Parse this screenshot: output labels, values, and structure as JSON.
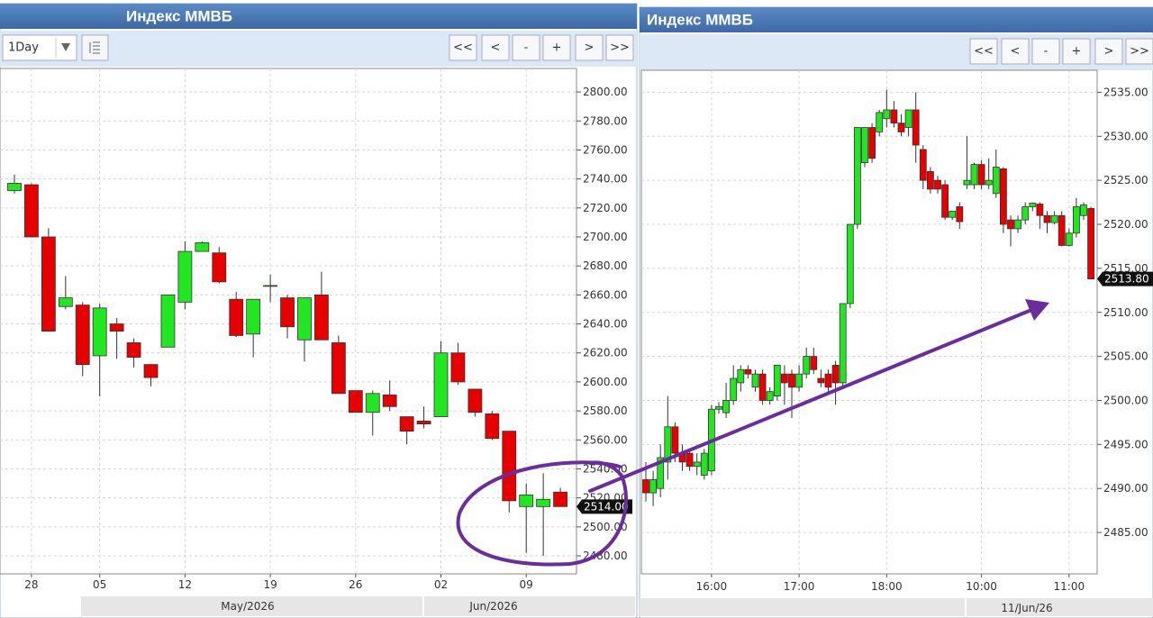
{
  "chart_data": [
    {
      "type": "candlestick",
      "title": "Индекс ММВБ",
      "interval": "1Day",
      "buttons": [
        "<<",
        "<",
        "-",
        "+",
        ">",
        ">>"
      ],
      "categories": [
        null,
        "28",
        null,
        null,
        null,
        "05",
        null,
        null,
        null,
        null,
        "12",
        null,
        null,
        null,
        null,
        "19",
        null,
        null,
        null,
        null,
        "26",
        null,
        null,
        null,
        null,
        "02",
        null,
        null,
        null,
        null,
        "09",
        null,
        null
      ],
      "x_group_labels": [
        "May/2026",
        "Jun/2026"
      ],
      "open": [
        2732,
        2736,
        2700,
        2652,
        2653,
        2618,
        2640,
        2627,
        2612,
        2624,
        2655,
        2690,
        2689,
        2657,
        2633,
        2666,
        2658,
        2629,
        2660,
        2627,
        2594,
        2579,
        2591,
        2576,
        2573,
        2576,
        2620,
        2595,
        2578,
        2566,
        2514,
        2514,
        2524
      ],
      "high": [
        2743,
        2737,
        2706,
        2673,
        2655,
        2654,
        2644,
        2630,
        2612,
        2660,
        2697,
        2697,
        2693,
        2662,
        2657,
        2674,
        2660,
        2658,
        2676,
        2632,
        2594,
        2594,
        2601,
        2576,
        2583,
        2628,
        2627,
        2595,
        2580,
        2566,
        2530,
        2537,
        2527
      ],
      "low": [
        2730,
        2700,
        2635,
        2650,
        2604,
        2590,
        2616,
        2610,
        2597,
        2624,
        2650,
        2690,
        2668,
        2631,
        2617,
        2655,
        2630,
        2614,
        2629,
        2592,
        2579,
        2563,
        2580,
        2557,
        2568,
        2576,
        2598,
        2576,
        2560,
        2510,
        2482,
        2480,
        2514
      ],
      "close": [
        2737,
        2700,
        2635,
        2658,
        2612,
        2651,
        2635,
        2617,
        2603,
        2660,
        2690,
        2696,
        2669,
        2632,
        2657,
        2666.5,
        2638,
        2658,
        2629,
        2592,
        2579,
        2592,
        2583,
        2566,
        2571,
        2620,
        2600,
        2579,
        2561,
        2518,
        2522,
        2519,
        2514
      ],
      "up_color": "#22e622",
      "down_color": "#e60000",
      "ylim": [
        2467.6,
        2816.2
      ],
      "yticks": [
        {
          "value": 2480,
          "label": "2480.00"
        },
        {
          "value": 2500,
          "label": "2500.00"
        },
        {
          "value": 2520,
          "label": "2520.00"
        },
        {
          "value": 2540,
          "label": "2540.00"
        },
        {
          "value": 2560,
          "label": "2560.00"
        },
        {
          "value": 2580,
          "label": "2580.00"
        },
        {
          "value": 2600,
          "label": "2600.00"
        },
        {
          "value": 2620,
          "label": "2620.00"
        },
        {
          "value": 2640,
          "label": "2640.00"
        },
        {
          "value": 2660,
          "label": "2660.00"
        },
        {
          "value": 2680,
          "label": "2680.00"
        },
        {
          "value": 2700,
          "label": "2700.00"
        },
        {
          "value": 2720,
          "label": "2720.00"
        },
        {
          "value": 2740,
          "label": "2740.00"
        },
        {
          "value": 2760,
          "label": "2760.00"
        },
        {
          "value": 2780,
          "label": "2780.00"
        },
        {
          "value": 2800,
          "label": "2800.00"
        }
      ],
      "grid": true,
      "last_price": {
        "value": 2514,
        "label": "2514.00"
      }
    },
    {
      "type": "candlestick",
      "title": "Индекс ММВБ",
      "buttons": [
        "<<",
        "<",
        "-",
        "+",
        ">",
        ">>"
      ],
      "categories": [
        null,
        null,
        null,
        null,
        null,
        null,
        null,
        null,
        null,
        "16:00",
        null,
        null,
        null,
        null,
        null,
        null,
        null,
        null,
        null,
        null,
        null,
        "17:00",
        null,
        null,
        null,
        null,
        null,
        null,
        null,
        null,
        null,
        null,
        null,
        "18:00",
        null,
        null,
        null,
        null,
        null,
        null,
        null,
        null,
        null,
        null,
        null,
        null,
        "10:00",
        null,
        null,
        null,
        null,
        null,
        null,
        null,
        null,
        null,
        null,
        null,
        "11:00",
        null,
        null,
        null
      ],
      "x_group_labels": [
        "11/Jun/26"
      ],
      "open": [
        2491,
        2489.5,
        2490,
        2493,
        2497,
        2494,
        2494,
        2492.5,
        2491.5,
        2492,
        2499,
        2498.6,
        2500,
        2502,
        2503.5,
        2501.5,
        2503,
        2500,
        2500.5,
        2503,
        2503,
        2501.5,
        2503,
        2505,
        2502.5,
        2503,
        2504,
        2502,
        2511,
        2520,
        2527,
        2531,
        2530.5,
        2532,
        2533,
        2531.5,
        2531,
        2533,
        2528.5,
        2526,
        2525,
        2524.5,
        2520.8,
        2522,
        2524.5,
        2524.5,
        2526.8,
        2524.5,
        2523.5,
        2526.3,
        2520.5,
        2519.5,
        2520.5,
        2522,
        2522.3,
        2521,
        2520.2,
        2521,
        2517.6,
        2519,
        2521,
        2521.8
      ],
      "high": [
        2493,
        2492,
        2495,
        2500.5,
        2497.5,
        2495,
        2494.5,
        2494,
        2494.5,
        2499.5,
        2499.8,
        2502,
        2504,
        2504,
        2504,
        2503.5,
        2503.5,
        2501.5,
        2504,
        2504,
        2503.5,
        2504,
        2506,
        2506,
        2503.5,
        2503.5,
        2504.5,
        2511,
        2520,
        2531,
        2531,
        2531.5,
        2533,
        2535.3,
        2534,
        2532.5,
        2533,
        2535,
        2529,
        2526.5,
        2525.5,
        2525,
        2521.5,
        2522.5,
        2530,
        2527,
        2527.3,
        2527.5,
        2528.5,
        2526.5,
        2521,
        2521,
        2522.5,
        2522.5,
        2522.5,
        2521.5,
        2521.5,
        2521.5,
        2519.5,
        2523,
        2522.5,
        2522
      ],
      "low": [
        2488.5,
        2488,
        2489,
        2491,
        2493,
        2492,
        2492,
        2491.5,
        2491,
        2491.5,
        2498.5,
        2498,
        2499.5,
        2501,
        2502.5,
        2501,
        2499.5,
        2499.5,
        2500,
        2499.5,
        2498,
        2501,
        2502.5,
        2503,
        2501.5,
        2501,
        2499.5,
        2501.5,
        2510.5,
        2519.5,
        2526.5,
        2527,
        2530,
        2531,
        2531,
        2530,
        2530,
        2527,
        2524,
        2523.5,
        2523.5,
        2520.5,
        2520.5,
        2519.5,
        2524,
        2524,
        2524,
        2524,
        2523,
        2519,
        2517.5,
        2519,
        2520,
        2521.5,
        2519.5,
        2519,
        2520,
        2517.5,
        2517.5,
        2518.5,
        2520.5,
        2513.8
      ],
      "close": [
        2489.5,
        2491,
        2493.5,
        2497,
        2494,
        2493,
        2492.5,
        2493,
        2494,
        2499,
        2499.3,
        2500,
        2502.5,
        2503.5,
        2503,
        2503,
        2500,
        2501,
        2504,
        2502,
        2501.5,
        2503,
        2505,
        2503.5,
        2502,
        2501.5,
        2502,
        2511,
        2520,
        2531,
        2531,
        2527.5,
        2532.7,
        2533,
        2531.5,
        2530.5,
        2533,
        2529,
        2525,
        2524,
        2524,
        2520.8,
        2521.5,
        2520.3,
        2525,
        2526.8,
        2524.5,
        2525,
        2526.5,
        2520,
        2519.5,
        2520.5,
        2522,
        2522.4,
        2521,
        2520.2,
        2521,
        2517.6,
        2519,
        2522,
        2522.2,
        2513.8
      ],
      "up_color": "#22e622",
      "down_color": "#e60000",
      "ylim": [
        2480.3,
        2537.5
      ],
      "yticks": [
        {
          "value": 2485,
          "label": "2485.00"
        },
        {
          "value": 2490,
          "label": "2490.00"
        },
        {
          "value": 2495,
          "label": "2495.00"
        },
        {
          "value": 2500,
          "label": "2500.00"
        },
        {
          "value": 2505,
          "label": "2505.00"
        },
        {
          "value": 2510,
          "label": "2510.00"
        },
        {
          "value": 2515,
          "label": "2515.00"
        },
        {
          "value": 2520,
          "label": "2520.00"
        },
        {
          "value": 2525,
          "label": "2525.00"
        },
        {
          "value": 2530,
          "label": "2530.00"
        },
        {
          "value": 2535,
          "label": "2535.00"
        }
      ],
      "grid": true,
      "last_price": {
        "value": 2513.8,
        "label": "2513.80"
      }
    }
  ]
}
